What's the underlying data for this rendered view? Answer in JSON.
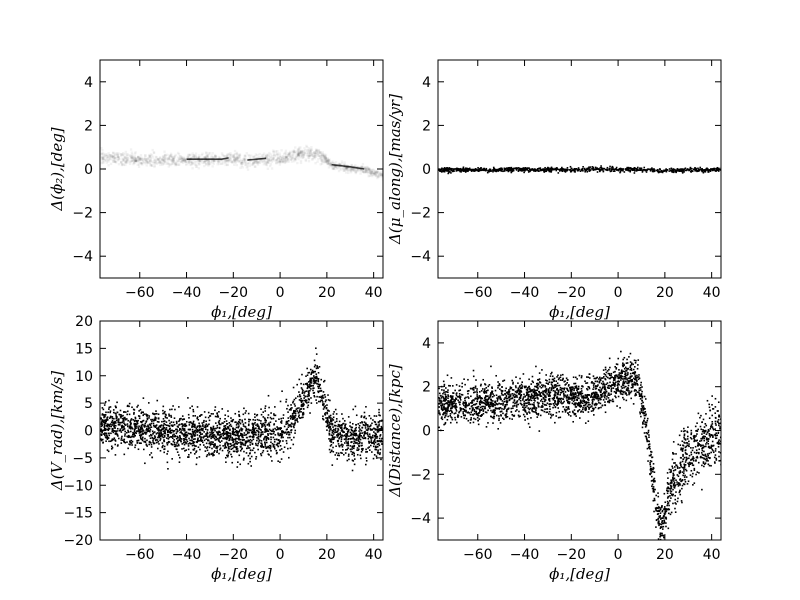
{
  "chart_data": [
    {
      "type": "scatter",
      "panel": "top-left",
      "xlabel": "ϕ₁,[deg]",
      "ylabel": "Δ(ϕ₂),[deg]",
      "xlim": [
        -77,
        44
      ],
      "ylim": [
        -5,
        5
      ],
      "xticks": [
        -60,
        -40,
        -20,
        0,
        20,
        40
      ],
      "yticks": [
        -4,
        -2,
        0,
        2,
        4
      ],
      "grid": false,
      "color": "#000000",
      "style": "faint translucent density trace",
      "trend": [
        [
          -77,
          0.6
        ],
        [
          -60,
          0.45
        ],
        [
          -40,
          0.45
        ],
        [
          -25,
          0.45
        ],
        [
          -20,
          0.55
        ],
        [
          -15,
          0.4
        ],
        [
          0,
          0.55
        ],
        [
          10,
          0.8
        ],
        [
          18,
          0.6
        ],
        [
          22,
          0.2
        ],
        [
          30,
          0.1
        ],
        [
          36,
          0.0
        ],
        [
          44,
          -0.25
        ]
      ],
      "scatter_spread": 0.15
    },
    {
      "type": "scatter",
      "panel": "top-right",
      "xlabel": "ϕ₁,[deg]",
      "ylabel": "Δ(μ_along),[mas/yr]",
      "xlim": [
        -77,
        44
      ],
      "ylim": [
        -5,
        5
      ],
      "xticks": [
        -60,
        -40,
        -20,
        0,
        20,
        40
      ],
      "yticks": [
        -4,
        -2,
        0,
        2,
        4
      ],
      "grid": false,
      "color": "#000000",
      "trend": [
        [
          -77,
          0.0
        ],
        [
          -40,
          0.0
        ],
        [
          0,
          0.02
        ],
        [
          10,
          0.02
        ],
        [
          18,
          -0.05
        ],
        [
          30,
          -0.03
        ],
        [
          44,
          0.0
        ]
      ],
      "scatter_spread": 0.05
    },
    {
      "type": "scatter",
      "panel": "bottom-left",
      "xlabel": "ϕ₁,[deg]",
      "ylabel": "Δ(V_rad),[km/s]",
      "xlim": [
        -77,
        44
      ],
      "ylim": [
        -20,
        20
      ],
      "xticks": [
        -60,
        -40,
        -20,
        0,
        20,
        40
      ],
      "yticks": [
        -20,
        -15,
        -10,
        -5,
        0,
        5,
        10,
        15,
        20
      ],
      "grid": false,
      "color": "#000000",
      "trend": [
        [
          -77,
          1.0
        ],
        [
          -60,
          0.5
        ],
        [
          -40,
          -0.5
        ],
        [
          -20,
          -1.0
        ],
        [
          0,
          -0.5
        ],
        [
          5,
          2.0
        ],
        [
          10,
          6.0
        ],
        [
          15,
          10.0
        ],
        [
          18,
          6.0
        ],
        [
          21,
          0.0
        ],
        [
          30,
          -1.0
        ],
        [
          44,
          -0.5
        ]
      ],
      "scatter_spread": 2.0
    },
    {
      "type": "scatter",
      "panel": "bottom-right",
      "xlabel": "ϕ₁,[deg]",
      "ylabel": "Δ(Distance),[kpc]",
      "xlim": [
        -77,
        44
      ],
      "ylim": [
        -5,
        5
      ],
      "xticks": [
        -60,
        -40,
        -20,
        0,
        20,
        40
      ],
      "yticks": [
        -4,
        -2,
        0,
        2,
        4
      ],
      "grid": false,
      "color": "#000000",
      "trend": [
        [
          -77,
          1.2
        ],
        [
          -60,
          1.3
        ],
        [
          -40,
          1.5
        ],
        [
          -25,
          1.6
        ],
        [
          -20,
          1.5
        ],
        [
          -15,
          1.4
        ],
        [
          -5,
          2.0
        ],
        [
          5,
          2.6
        ],
        [
          8,
          2.3
        ],
        [
          12,
          0.0
        ],
        [
          15,
          -2.5
        ],
        [
          18,
          -4.5
        ],
        [
          22,
          -2.5
        ],
        [
          28,
          -1.3
        ],
        [
          35,
          -0.6
        ],
        [
          44,
          0.0
        ]
      ],
      "scatter_spread": 0.45
    }
  ]
}
